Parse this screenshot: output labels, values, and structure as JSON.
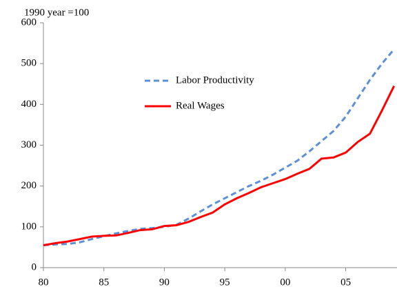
{
  "chart_data": {
    "type": "line",
    "y_label": "1990 year =100",
    "x": [
      1980,
      1981,
      1982,
      1983,
      1984,
      1985,
      1986,
      1987,
      1988,
      1989,
      1990,
      1991,
      1992,
      1993,
      1994,
      1995,
      1996,
      1997,
      1998,
      1999,
      2000,
      2001,
      2002,
      2003,
      2004,
      2005,
      2006,
      2007,
      2008,
      2009
    ],
    "series": [
      {
        "name": "Labor Productivity",
        "color": "#5b8fd6",
        "dashed": true,
        "values": [
          55,
          57,
          58,
          62,
          70,
          77,
          84,
          90,
          95,
          97,
          100,
          105,
          120,
          138,
          155,
          170,
          185,
          200,
          213,
          228,
          245,
          262,
          285,
          310,
          335,
          370,
          415,
          460,
          500,
          535
        ]
      },
      {
        "name": "Real Wages",
        "color": "#ff0000",
        "dashed": false,
        "values": [
          55,
          60,
          64,
          70,
          76,
          78,
          79,
          85,
          92,
          94,
          102,
          104,
          112,
          124,
          135,
          155,
          170,
          183,
          197,
          207,
          217,
          230,
          242,
          267,
          270,
          282,
          308,
          328,
          385,
          445
        ]
      }
    ],
    "xlim": [
      1980,
      2009.1
    ],
    "xticks": [
      {
        "value": 1980,
        "label": "80"
      },
      {
        "value": 1985,
        "label": "85"
      },
      {
        "value": 1990,
        "label": "90"
      },
      {
        "value": 1995,
        "label": "95"
      },
      {
        "value": 2000,
        "label": "00"
      },
      {
        "value": 2005,
        "label": "05"
      }
    ],
    "ylim": [
      0,
      600
    ],
    "yticks": [
      0,
      100,
      200,
      300,
      400,
      500,
      600
    ],
    "grid": false
  }
}
